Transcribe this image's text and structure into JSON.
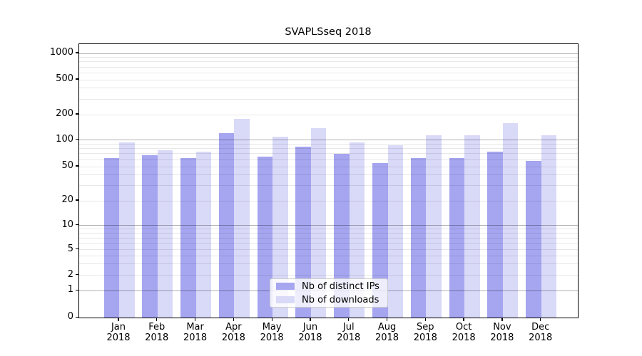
{
  "chart_data": {
    "type": "bar",
    "title": "SVAPLSseq 2018",
    "categories": [
      "Jan 2018",
      "Feb 2018",
      "Mar 2018",
      "Apr 2018",
      "May 2018",
      "Jun 2018",
      "Jul 2018",
      "Aug 2018",
      "Sep 2018",
      "Oct 2018",
      "Nov 2018",
      "Dec 2018"
    ],
    "series": [
      {
        "name": "Nb of distinct IPs",
        "color": "#a5a5f0",
        "values": [
          62,
          67,
          62,
          120,
          65,
          84,
          69,
          55,
          62,
          62,
          74,
          58
        ]
      },
      {
        "name": "Nb of downloads",
        "color": "#d9d9f8",
        "values": [
          93,
          76,
          74,
          178,
          109,
          136,
          93,
          86,
          112,
          114,
          157,
          112
        ]
      }
    ],
    "xlabel": "",
    "ylabel": "",
    "yscale": "symlog",
    "yticks": [
      0,
      1,
      2,
      5,
      10,
      20,
      50,
      100,
      200,
      500,
      1000
    ],
    "ylim": [
      0,
      1300
    ],
    "grid": "both, drawn over bars",
    "legend_position": "lower center inside plot",
    "colors": {
      "major_grid": "#b3b3b3",
      "minor_grid": "#e8e8e8",
      "axis": "#000000",
      "background": "#ffffff"
    }
  }
}
